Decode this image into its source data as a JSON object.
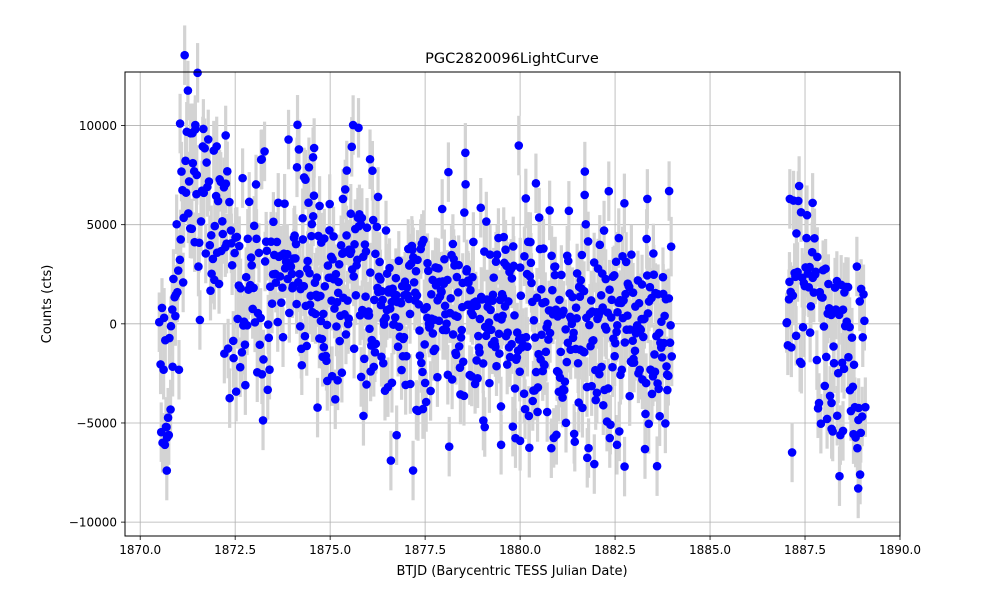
{
  "chart_data": {
    "type": "scatter",
    "title": "PGC2820096LightCurve",
    "xlabel": "BTJD (Barycentric TESS Julian Date)",
    "ylabel": "Counts (cts)",
    "xlim": [
      1869.6,
      1890.0
    ],
    "ylim": [
      -10700,
      12700
    ],
    "xticks": [
      1870.0,
      1872.5,
      1875.0,
      1877.5,
      1880.0,
      1882.5,
      1885.0,
      1887.5,
      1890.0
    ],
    "xtick_labels": [
      "1870.0",
      "1872.5",
      "1875.0",
      "1877.5",
      "1880.0",
      "1882.5",
      "1885.0",
      "1887.5",
      "1890.0"
    ],
    "yticks": [
      -10000,
      -5000,
      0,
      5000,
      10000
    ],
    "ytick_labels": [
      "−10000",
      "−5000",
      "0",
      "5000",
      "10000"
    ],
    "grid": true,
    "marker_color": "#0000ff",
    "errorbar_color": "#d3d3d3",
    "error_magnitude": 1500,
    "segments": [
      {
        "x_start": 1870.5,
        "x_end": 1874.0,
        "n": 170
      },
      {
        "x_start": 1874.0,
        "x_end": 1884.0,
        "n": 640
      },
      {
        "x_start": 1887.0,
        "x_end": 1889.1,
        "n": 100
      }
    ],
    "trend_points": [
      {
        "x": 1870.45,
        "y": 0
      },
      {
        "x": 1870.6,
        "y": -2000
      },
      {
        "x": 1870.8,
        "y": -2500
      },
      {
        "x": 1871.0,
        "y": 3000
      },
      {
        "x": 1871.2,
        "y": 7500
      },
      {
        "x": 1871.5,
        "y": 8500
      },
      {
        "x": 1871.9,
        "y": 5500
      },
      {
        "x": 1872.3,
        "y": 3500
      },
      {
        "x": 1872.6,
        "y": 2000
      },
      {
        "x": 1873.0,
        "y": 3000
      },
      {
        "x": 1873.3,
        "y": 2000
      },
      {
        "x": 1874.0,
        "y": 3500
      },
      {
        "x": 1874.5,
        "y": 2500
      },
      {
        "x": 1875.0,
        "y": 1500
      },
      {
        "x": 1875.5,
        "y": 2500
      },
      {
        "x": 1876.0,
        "y": 2000
      },
      {
        "x": 1876.5,
        "y": 1500
      },
      {
        "x": 1877.0,
        "y": 800
      },
      {
        "x": 1877.5,
        "y": 500
      },
      {
        "x": 1878.0,
        "y": 300
      },
      {
        "x": 1879.0,
        "y": 0
      },
      {
        "x": 1880.0,
        "y": -300
      },
      {
        "x": 1881.0,
        "y": 0
      },
      {
        "x": 1882.0,
        "y": -300
      },
      {
        "x": 1882.5,
        "y": -500
      },
      {
        "x": 1883.0,
        "y": 0
      },
      {
        "x": 1883.5,
        "y": -500
      },
      {
        "x": 1884.0,
        "y": -300
      },
      {
        "x": 1887.0,
        "y": 2000
      },
      {
        "x": 1887.5,
        "y": 2500
      },
      {
        "x": 1888.0,
        "y": 500
      },
      {
        "x": 1888.5,
        "y": -1500
      },
      {
        "x": 1888.85,
        "y": -2500
      },
      {
        "x": 1889.1,
        "y": -1000
      }
    ],
    "scatter_spread": 2800,
    "highlight_points": [
      {
        "x": 1871.05,
        "y": 10100
      },
      {
        "x": 1871.45,
        "y": 9800
      },
      {
        "x": 1872.25,
        "y": 9500
      },
      {
        "x": 1874.55,
        "y": 8400
      },
      {
        "x": 1876.05,
        "y": 8300
      },
      {
        "x": 1873.2,
        "y": 8300
      },
      {
        "x": 1870.7,
        "y": -7400
      },
      {
        "x": 1870.65,
        "y": -6100
      },
      {
        "x": 1882.75,
        "y": -7200
      },
      {
        "x": 1888.9,
        "y": -8300
      },
      {
        "x": 1888.95,
        "y": -7600
      },
      {
        "x": 1881.7,
        "y": 6500
      },
      {
        "x": 1883.35,
        "y": 6300
      },
      {
        "x": 1887.1,
        "y": 6300
      },
      {
        "x": 1887.7,
        "y": 6100
      },
      {
        "x": 1879.5,
        "y": -6100
      },
      {
        "x": 1880.0,
        "y": -5900
      },
      {
        "x": 1882.55,
        "y": -6100
      },
      {
        "x": 1888.2,
        "y": -5300
      },
      {
        "x": 1888.5,
        "y": -5400
      }
    ]
  }
}
